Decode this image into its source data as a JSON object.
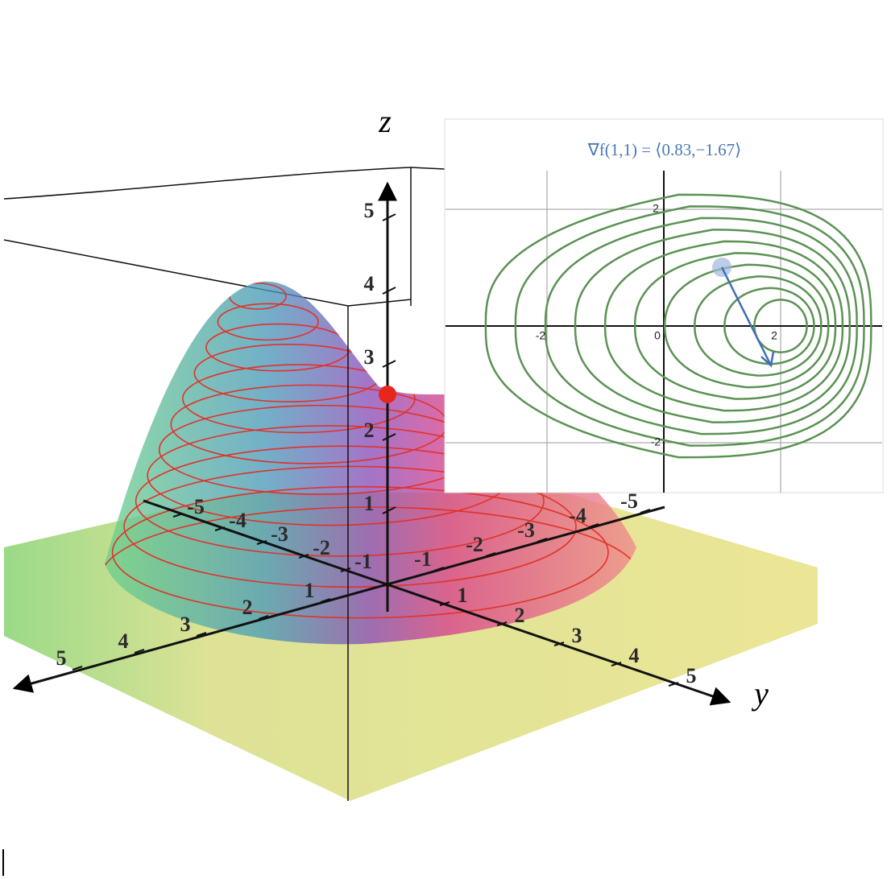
{
  "surface": {
    "z_label": "z",
    "y_label": "y",
    "z_ticks": [
      1,
      2,
      3,
      4,
      5
    ],
    "x_ticks": [
      -5,
      -4,
      -3,
      -2,
      -1,
      1,
      2,
      3,
      4,
      5
    ],
    "y_ticks": [
      -5,
      -4,
      -3,
      -2,
      -1,
      1,
      2,
      3,
      4,
      5
    ]
  },
  "inset": {
    "title": "∇f(1,1) = ⟨0.83,−1.67⟩",
    "x_ticks": [
      -2,
      0,
      2
    ],
    "y_ticks": [
      2,
      -2
    ]
  }
}
